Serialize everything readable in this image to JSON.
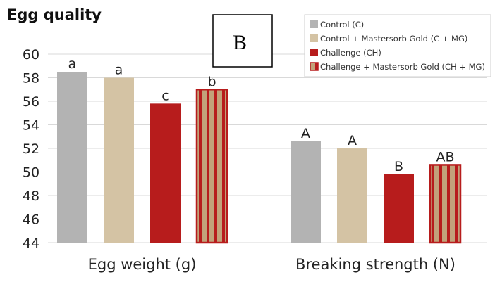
{
  "panel_label": "B",
  "chart_data": {
    "type": "bar",
    "title": "Egg quality",
    "xlabel": "",
    "ylabel": "",
    "ylim": [
      44,
      60
    ],
    "yticks": [
      44,
      46,
      48,
      50,
      52,
      54,
      56,
      58,
      60
    ],
    "grid": true,
    "legend_position": "top-right",
    "categories": [
      "Egg weight (g)",
      "Breaking strength (N)"
    ],
    "series": [
      {
        "name": "Control (C)",
        "color": "#b3b3b3",
        "pattern": "solid",
        "values": [
          58.5,
          52.6
        ],
        "labels": [
          "a",
          "A"
        ]
      },
      {
        "name": "Control + Mastersorb Gold (C + MG)",
        "color": "#d4c3a4",
        "pattern": "solid",
        "values": [
          58.0,
          52.0
        ],
        "labels": [
          "a",
          "A"
        ]
      },
      {
        "name": "Challenge (CH)",
        "color": "#b71c1c",
        "pattern": "solid",
        "values": [
          55.8,
          49.8
        ],
        "labels": [
          "c",
          "B"
        ]
      },
      {
        "name": "Challenge + Mastersorb Gold (CH + MG)",
        "color": "#b71c1c",
        "pattern": "striped",
        "stripe_color": "#c2a27a",
        "values": [
          57.0,
          50.6
        ],
        "labels": [
          "b",
          "AB"
        ]
      }
    ]
  }
}
